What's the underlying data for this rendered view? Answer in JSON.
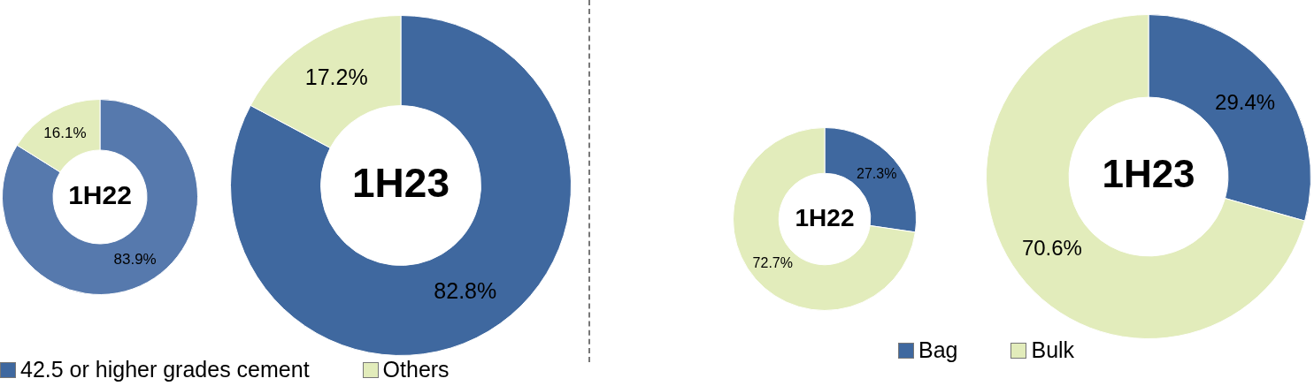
{
  "chart_data": [
    {
      "type": "donut",
      "categories": [
        "42.5 or higher grades cement",
        "Others"
      ],
      "legend": "bottom",
      "series": [
        {
          "name": "1H22",
          "values": [
            83.9,
            16.1
          ],
          "colors": [
            "#5679ad",
            "#e2ecbb"
          ],
          "value_labels": [
            "83.9%",
            "16.1%"
          ]
        },
        {
          "name": "1H23",
          "values": [
            82.8,
            17.2
          ],
          "colors": [
            "#3f689f",
            "#e2ecbb"
          ],
          "value_labels": [
            "82.8%",
            "17.2%"
          ]
        }
      ]
    },
    {
      "type": "donut",
      "categories": [
        "Bag",
        "Bulk"
      ],
      "legend": "bottom",
      "series": [
        {
          "name": "1H22",
          "values": [
            27.3,
            72.7
          ],
          "colors": [
            "#3f689f",
            "#e2ecbb"
          ],
          "value_labels": [
            "27.3%",
            "72.7%"
          ]
        },
        {
          "name": "1H23",
          "values": [
            29.4,
            70.6
          ],
          "colors": [
            "#3f689f",
            "#e2ecbb"
          ],
          "value_labels": [
            "29.4%",
            "70.6%"
          ]
        }
      ]
    }
  ]
}
